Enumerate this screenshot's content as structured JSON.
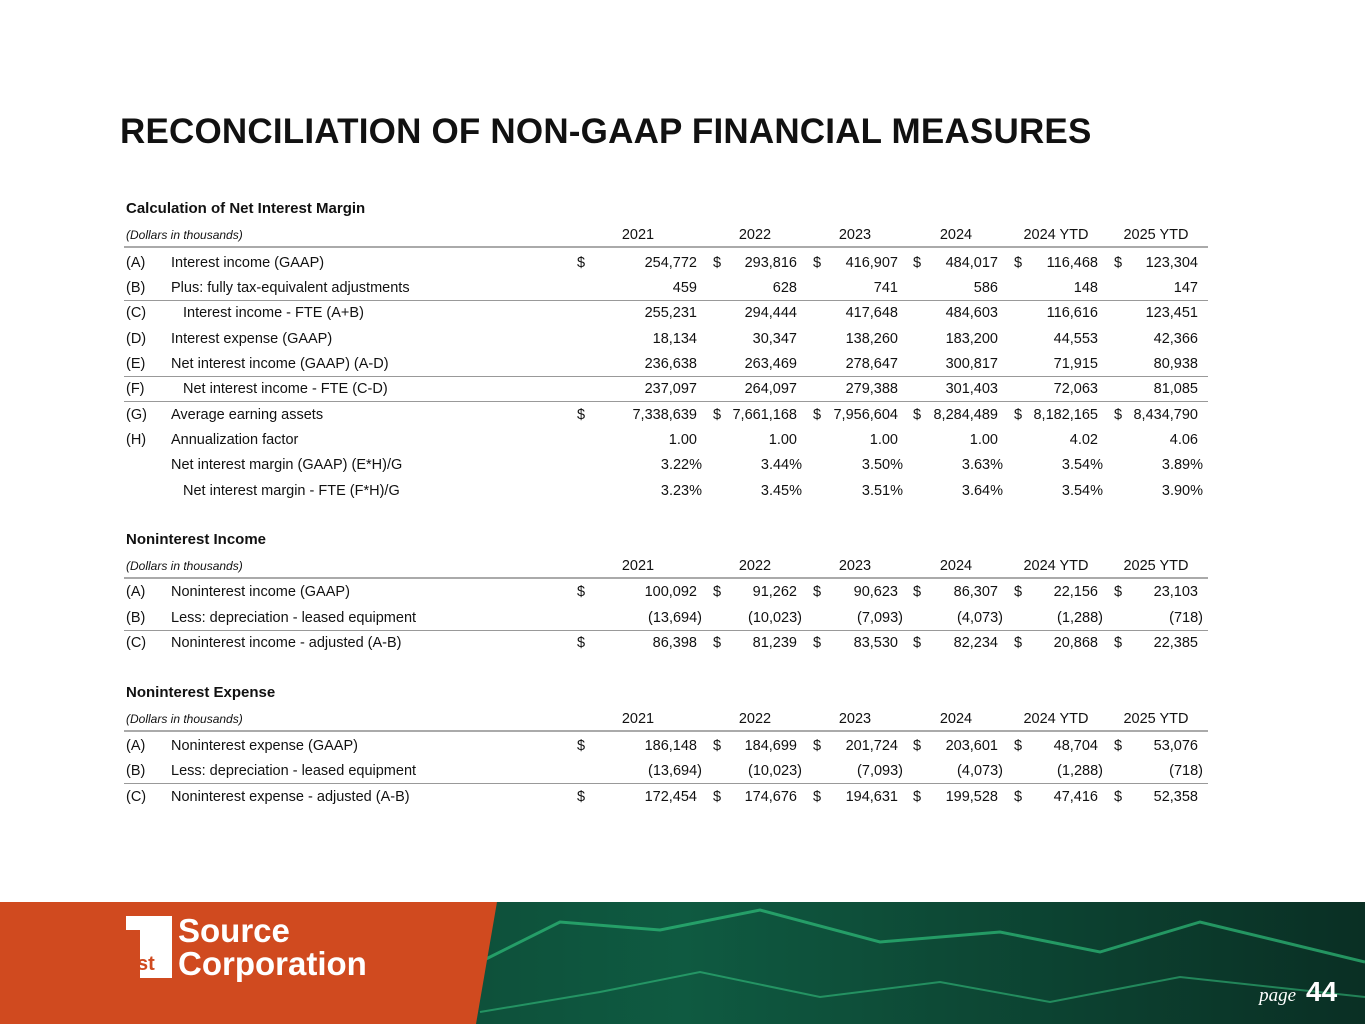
{
  "header": {
    "title": "RECONCILIATION OF NON-GAAP FINANCIAL MEASURES"
  },
  "sections": [
    {
      "heading": "Calculation of Net Interest Margin",
      "units": "(Dollars in thousands)",
      "columns": [
        "2021",
        "2022",
        "2023",
        "2024",
        "2024 YTD",
        "2025 YTD"
      ],
      "rows": [
        {
          "code": "(A)",
          "label": "Interest income (GAAP)",
          "currency": "$",
          "cells": [
            "254,772",
            "293,816",
            "416,907",
            "484,017",
            "116,468",
            "123,304"
          ]
        },
        {
          "code": "(B)",
          "label": "Plus: fully tax-equivalent adjustments",
          "cells": [
            "459",
            "628",
            "741",
            "586",
            "148",
            "147"
          ]
        },
        {
          "code": "(C)",
          "label": "Interest income - FTE (A+B)",
          "cells": [
            "255,231",
            "294,444",
            "417,648",
            "484,603",
            "116,616",
            "123,451"
          ]
        },
        {
          "code": "(D)",
          "label": "Interest expense (GAAP)",
          "cells": [
            "18,134",
            "30,347",
            "138,260",
            "183,200",
            "44,553",
            "42,366"
          ]
        },
        {
          "code": "(E)",
          "label": "Net interest income (GAAP) (A-D)",
          "cells": [
            "236,638",
            "263,469",
            "278,647",
            "300,817",
            "71,915",
            "80,938"
          ]
        },
        {
          "code": "(F)",
          "label": "Net interest income - FTE (C-D)",
          "cells": [
            "237,097",
            "264,097",
            "279,388",
            "301,403",
            "72,063",
            "81,085"
          ]
        },
        {
          "code": "(G)",
          "label": "Average earning assets",
          "currency": "$",
          "cells": [
            "7,338,639",
            "7,661,168",
            "7,956,604",
            "8,284,489",
            "8,182,165",
            "8,434,790"
          ]
        },
        {
          "code": "(H)",
          "label": "Annualization factor",
          "cells": [
            "1.00",
            "1.00",
            "1.00",
            "1.00",
            "4.02",
            "4.06"
          ]
        },
        {
          "label": "Net interest margin (GAAP) (E*H)/G",
          "cells": [
            "3.22%",
            "3.44%",
            "3.50%",
            "3.63%",
            "3.54%",
            "3.89%"
          ]
        },
        {
          "label": "Net interest margin - FTE (F*H)/G",
          "cells": [
            "3.23%",
            "3.45%",
            "3.51%",
            "3.64%",
            "3.54%",
            "3.90%"
          ]
        }
      ]
    },
    {
      "heading": "Noninterest Income",
      "units": "(Dollars in thousands)",
      "columns": [
        "2021",
        "2022",
        "2023",
        "2024",
        "2024 YTD",
        "2025 YTD"
      ],
      "rows": [
        {
          "code": "(A)",
          "label": "Noninterest income (GAAP)",
          "currency": "$",
          "cells": [
            "100,092",
            "91,262",
            "90,623",
            "86,307",
            "22,156",
            "23,103"
          ]
        },
        {
          "code": "(B)",
          "label": "Less: depreciation - leased equipment",
          "cells": [
            "(13,694)",
            "(10,023)",
            "(7,093)",
            "(4,073)",
            "(1,288)",
            "(718)"
          ]
        },
        {
          "code": "(C)",
          "label": "Noninterest income - adjusted (A-B)",
          "currency": "$",
          "cells": [
            "86,398",
            "81,239",
            "83,530",
            "82,234",
            "20,868",
            "22,385"
          ]
        }
      ]
    },
    {
      "heading": "Noninterest Expense",
      "units": "(Dollars in thousands)",
      "columns": [
        "2021",
        "2022",
        "2023",
        "2024",
        "2024 YTD",
        "2025 YTD"
      ],
      "rows": [
        {
          "code": "(A)",
          "label": "Noninterest expense (GAAP)",
          "currency": "$",
          "cells": [
            "186,148",
            "184,699",
            "201,724",
            "203,601",
            "48,704",
            "53,076"
          ]
        },
        {
          "code": "(B)",
          "label": "Less: depreciation - leased equipment",
          "cells": [
            "(13,694)",
            "(10,023)",
            "(7,093)",
            "(4,073)",
            "(1,288)",
            "(718)"
          ]
        },
        {
          "code": "(C)",
          "label": "Noninterest expense - adjusted (A-B)",
          "currency": "$",
          "cells": [
            "172,454",
            "174,676",
            "194,631",
            "199,528",
            "47,416",
            "52,358"
          ]
        }
      ]
    }
  ],
  "footer": {
    "badge": "st",
    "logo_line1": "Source",
    "logo_line2": "Corporation",
    "page_label": "page",
    "page_number": "44"
  }
}
